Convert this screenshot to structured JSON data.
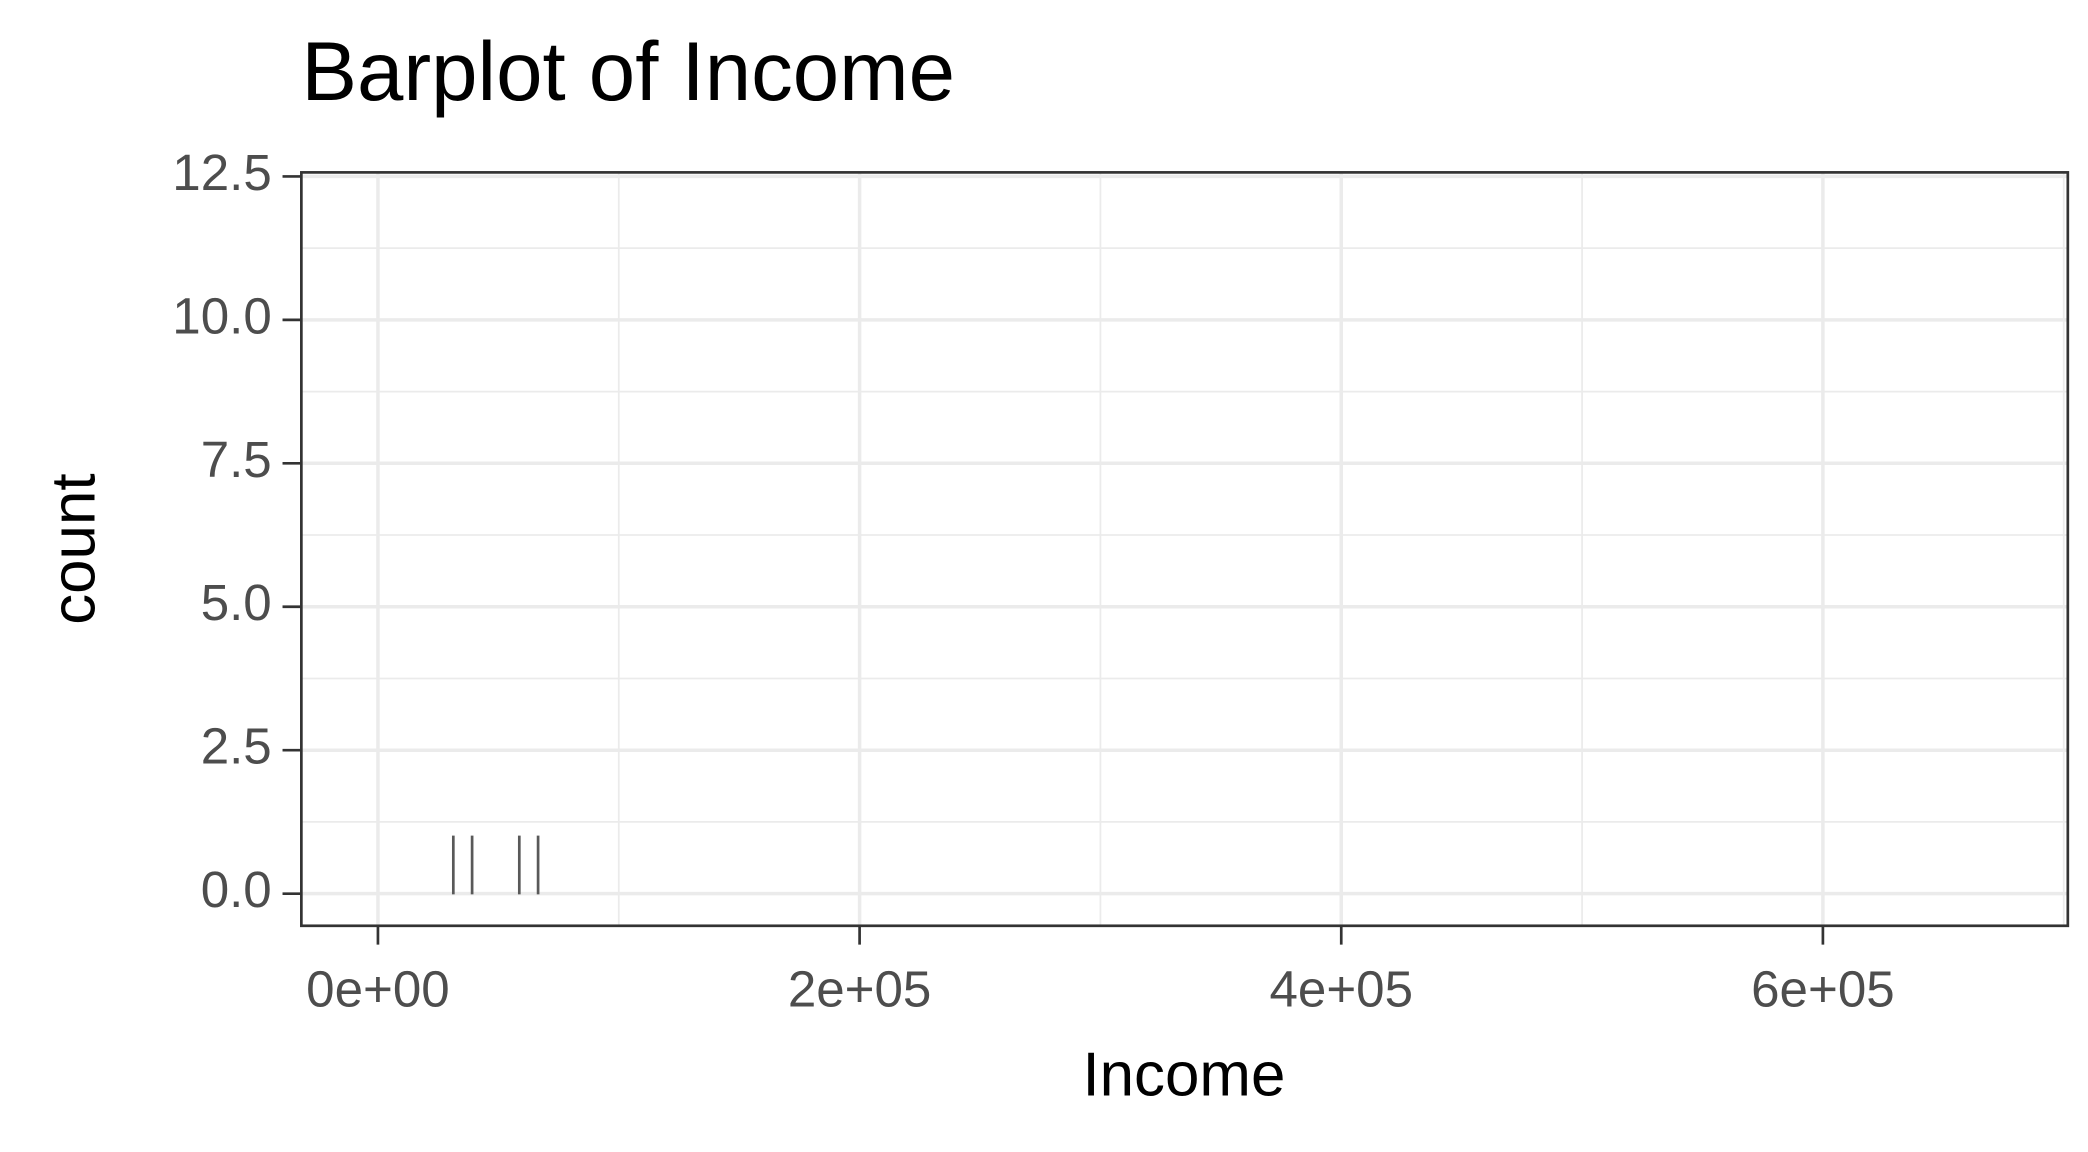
{
  "chart_data": {
    "type": "bar",
    "title": "Barplot of Income",
    "x_label": "Income",
    "y_label": "count",
    "x": [
      31300,
      39100,
      58700,
      66500
    ],
    "values": [
      1,
      1,
      1,
      1
    ],
    "color": "#595959",
    "xlim": [
      -31800,
      701700
    ],
    "ylim": [
      -0.56,
      12.57
    ],
    "xticks": [
      {
        "value": 0,
        "label": "0e+00"
      },
      {
        "value": 200000,
        "label": "2e+05"
      },
      {
        "value": 400000,
        "label": "4e+05"
      },
      {
        "value": 600000,
        "label": "6e+05"
      }
    ],
    "yticks": [
      {
        "value": 0,
        "label": "0.0"
      },
      {
        "value": 2.5,
        "label": "2.5"
      },
      {
        "value": 5,
        "label": "5.0"
      },
      {
        "value": 7.5,
        "label": "7.5"
      },
      {
        "value": 10,
        "label": "10.0"
      },
      {
        "value": 12.5,
        "label": "12.5"
      }
    ],
    "grid": true
  }
}
